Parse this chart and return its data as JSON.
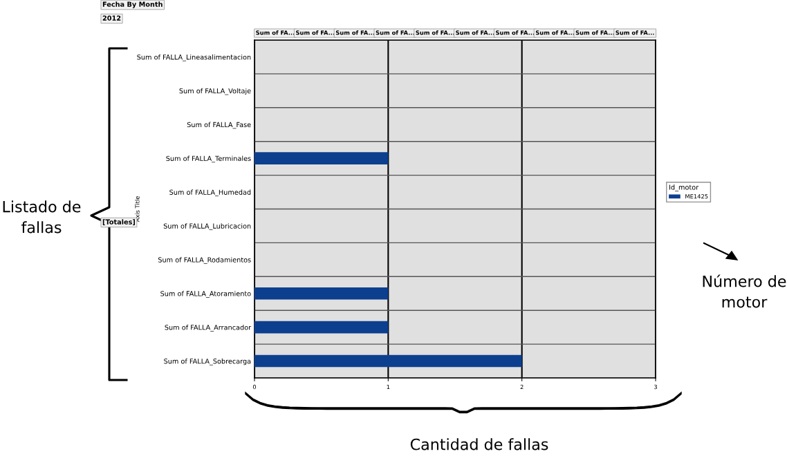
{
  "chart_data": {
    "type": "bar",
    "orientation": "horizontal",
    "categories": [
      "Sum of FALLA_Lineasalimentacion",
      "Sum of FALLA_Voltaje",
      "Sum of FALLA_Fase",
      "Sum of FALLA_Terminales",
      "Sum of FALLA_Humedad",
      "Sum of FALLA_Lubricacion",
      "Sum of FALLA_Rodamientos",
      "Sum of FALLA_Atoramiento",
      "Sum of FALLA_Arrancador",
      "Sum of FALLA_Sobrecarga"
    ],
    "series": [
      {
        "name": "ME1425",
        "color": "#0d3f8f",
        "values": [
          0,
          0,
          0,
          1,
          0,
          0,
          0,
          1,
          1,
          2
        ]
      }
    ],
    "xlim": [
      0,
      3
    ],
    "xticks": [
      0,
      1,
      2,
      3
    ],
    "ylabel": "Axis Title",
    "legend_title": "Id_motor",
    "legend": "right",
    "grid": true,
    "annotations": [
      "Fecha By Month",
      "2012",
      "[Totales]",
      "Listado de fallas",
      "Número de motor",
      "Cantidad de fallas",
      "Sum of FA...",
      "Sum of FA...",
      "Sum of FA...",
      "Sum of FA...",
      "Sum of FA...",
      "Sum of FA...",
      "Sum of FA...",
      "Sum of FA...",
      "Sum of FA...",
      "Sum of FA..."
    ]
  }
}
